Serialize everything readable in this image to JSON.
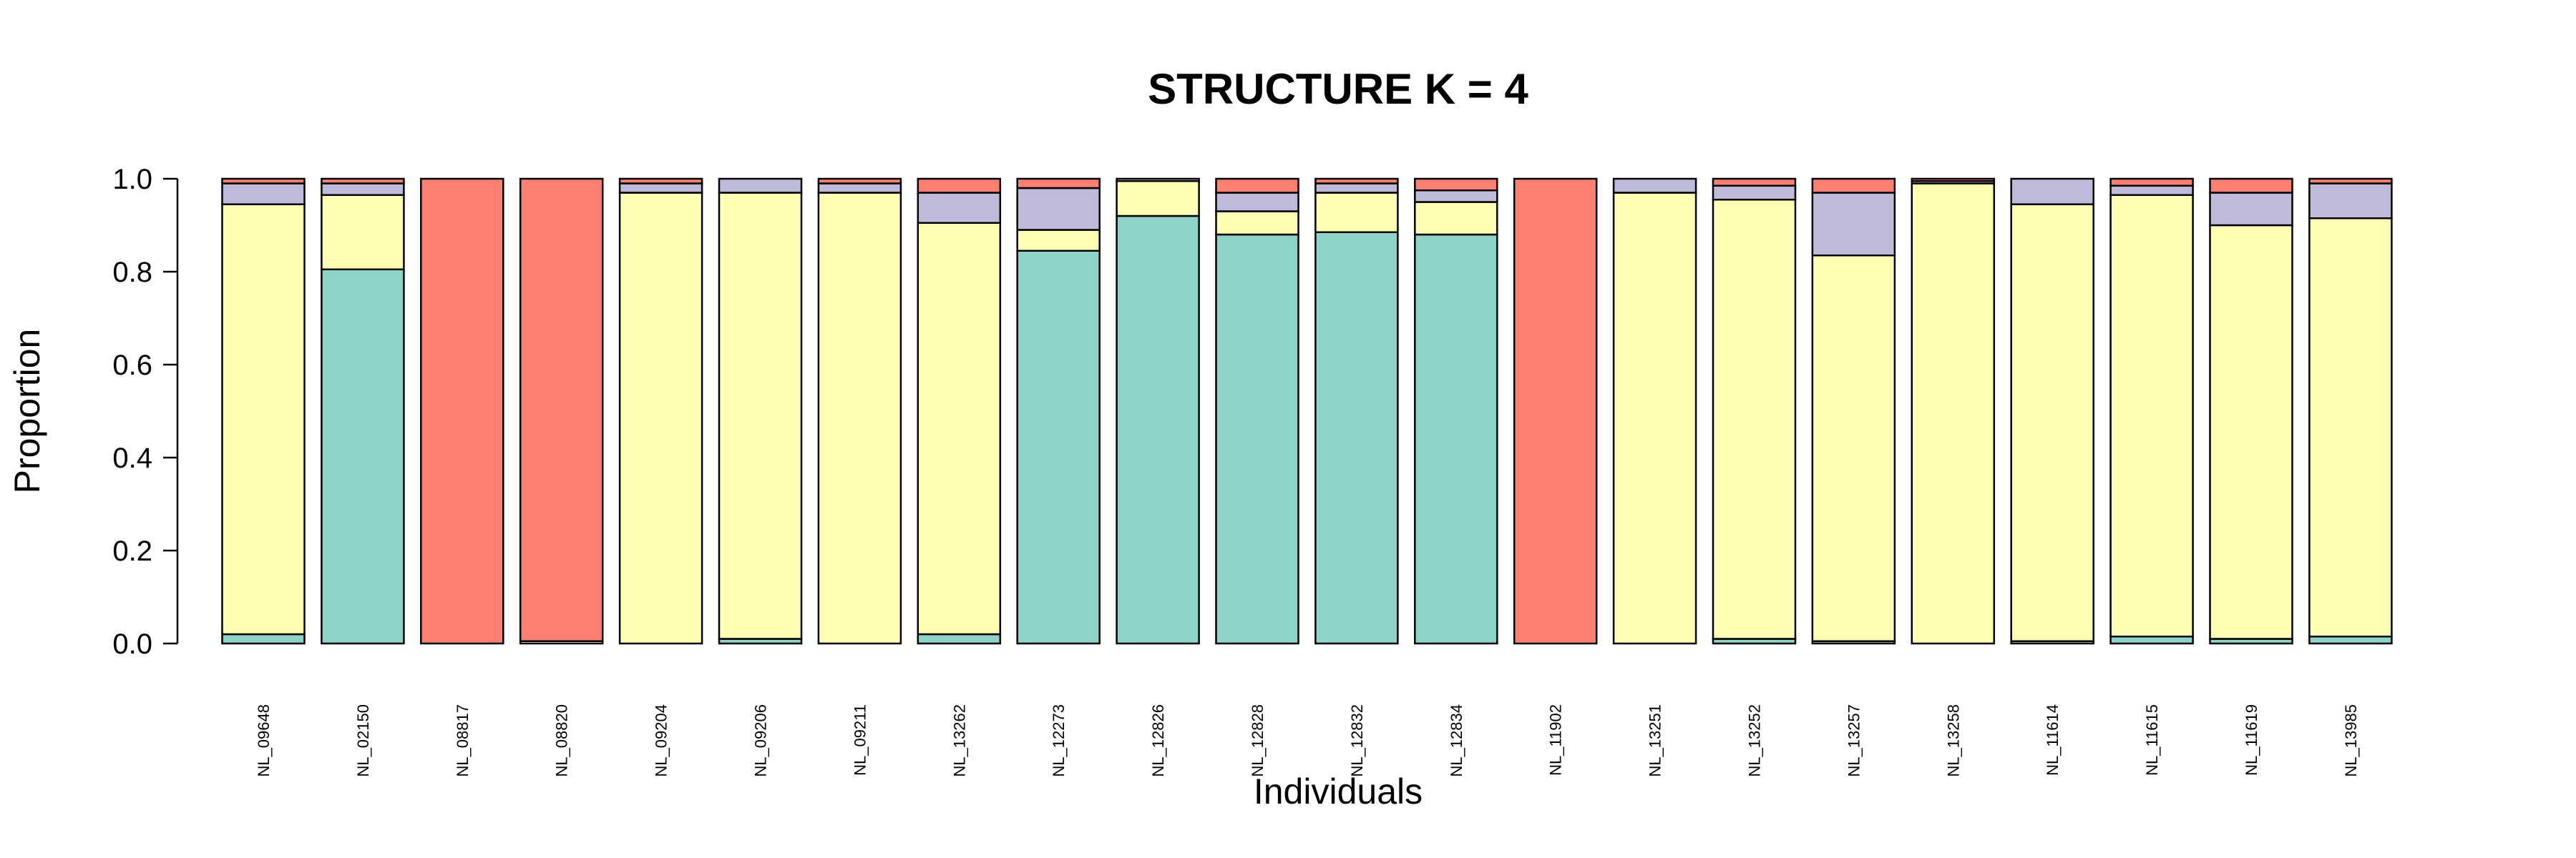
{
  "chart_data": {
    "type": "bar",
    "stacked": true,
    "title": "STRUCTURE  K = 4",
    "xlabel": "Individuals",
    "ylabel": "Proportion",
    "ylim": [
      0,
      1
    ],
    "yticks": [
      "0.0",
      "0.2",
      "0.4",
      "0.6",
      "0.8",
      "1.0"
    ],
    "grid": false,
    "categories": [
      "NL_09648",
      "NL_02150",
      "NL_08817",
      "NL_08820",
      "NL_09204",
      "NL_09206",
      "NL_09211",
      "NL_13262",
      "NL_12273",
      "NL_12826",
      "NL_12828",
      "NL_12832",
      "NL_12834",
      "NL_11902",
      "NL_13251",
      "NL_13252",
      "NL_13257",
      "NL_13258",
      "NL_11614",
      "NL_11615",
      "NL_11619",
      "NL_13985"
    ],
    "series": [
      {
        "color": "#8DD3C7",
        "values": [
          0.02,
          0.805,
          0.0,
          0.0,
          0.0,
          0.01,
          0.0,
          0.02,
          0.845,
          0.92,
          0.88,
          0.885,
          0.88,
          0.0,
          0.0,
          0.01,
          0.005,
          0.0,
          0.005,
          0.015,
          0.01,
          0.015
        ]
      },
      {
        "color": "#FFFFB3",
        "values": [
          0.925,
          0.16,
          0.0,
          0.005,
          0.97,
          0.96,
          0.97,
          0.885,
          0.045,
          0.075,
          0.05,
          0.085,
          0.07,
          0.0,
          0.97,
          0.945,
          0.83,
          0.99,
          0.94,
          0.95,
          0.89,
          0.9
        ]
      },
      {
        "color": "#BEBADA",
        "values": [
          0.045,
          0.025,
          0.0,
          0.0,
          0.02,
          0.03,
          0.02,
          0.065,
          0.09,
          0.005,
          0.04,
          0.02,
          0.025,
          0.0,
          0.03,
          0.03,
          0.135,
          0.005,
          0.055,
          0.02,
          0.07,
          0.075
        ]
      },
      {
        "color": "#FB8072",
        "values": [
          0.01,
          0.01,
          1.0,
          0.995,
          0.01,
          0.0,
          0.01,
          0.03,
          0.02,
          0.0,
          0.03,
          0.01,
          0.025,
          1.0,
          0.0,
          0.015,
          0.03,
          0.005,
          0.0,
          0.015,
          0.03,
          0.01
        ]
      }
    ]
  }
}
